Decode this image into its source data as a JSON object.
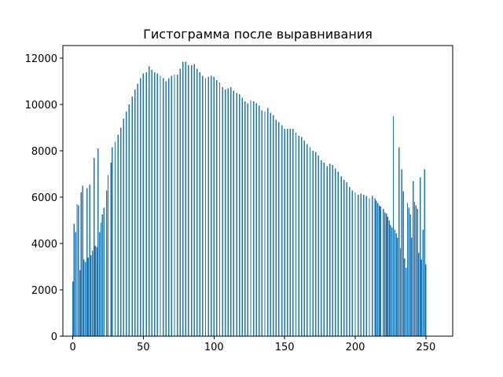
{
  "chart_data": {
    "type": "bar",
    "title": "Гистограмма после выравнивания",
    "xlabel": "",
    "ylabel": "",
    "xlim": [
      -7,
      269
    ],
    "ylim": [
      0,
      12550
    ],
    "xticks": [
      0,
      50,
      100,
      150,
      200,
      250
    ],
    "yticks": [
      0,
      2000,
      4000,
      6000,
      8000,
      10000,
      12000
    ],
    "bar_color": "#1f77b4",
    "grid": false,
    "legend": "none",
    "bins": [
      {
        "x": 0,
        "value": 2350
      },
      {
        "x": 1,
        "value": 4850
      },
      {
        "x": 2,
        "value": 4500
      },
      {
        "x": 3,
        "value": 5700
      },
      {
        "x": 4,
        "value": 5650
      },
      {
        "x": 5,
        "value": 2850
      },
      {
        "x": 6,
        "value": 6200
      },
      {
        "x": 7,
        "value": 6500
      },
      {
        "x": 8,
        "value": 3300
      },
      {
        "x": 9,
        "value": 3200
      },
      {
        "x": 10,
        "value": 6400
      },
      {
        "x": 11,
        "value": 3400
      },
      {
        "x": 12,
        "value": 6550
      },
      {
        "x": 13,
        "value": 3500
      },
      {
        "x": 14,
        "value": 3700
      },
      {
        "x": 15,
        "value": 7700
      },
      {
        "x": 16,
        "value": 3900
      },
      {
        "x": 17,
        "value": 3850
      },
      {
        "x": 18,
        "value": 8100
      },
      {
        "x": 19,
        "value": 4500
      },
      {
        "x": 20,
        "value": 4900
      },
      {
        "x": 21,
        "value": 5250
      },
      {
        "x": 22,
        "value": 5550
      },
      {
        "x": 24,
        "value": 6300
      },
      {
        "x": 25,
        "value": 6950
      },
      {
        "x": 27,
        "value": 7500
      },
      {
        "x": 28,
        "value": 8150
      },
      {
        "x": 30,
        "value": 8400
      },
      {
        "x": 32,
        "value": 8700
      },
      {
        "x": 34,
        "value": 9000
      },
      {
        "x": 36,
        "value": 9400
      },
      {
        "x": 38,
        "value": 9700
      },
      {
        "x": 40,
        "value": 10000
      },
      {
        "x": 42,
        "value": 10350
      },
      {
        "x": 44,
        "value": 10650
      },
      {
        "x": 46,
        "value": 10900
      },
      {
        "x": 48,
        "value": 11150
      },
      {
        "x": 50,
        "value": 11350
      },
      {
        "x": 52,
        "value": 11400
      },
      {
        "x": 54,
        "value": 11650
      },
      {
        "x": 56,
        "value": 11500
      },
      {
        "x": 58,
        "value": 11400
      },
      {
        "x": 60,
        "value": 11350
      },
      {
        "x": 62,
        "value": 11250
      },
      {
        "x": 64,
        "value": 11150
      },
      {
        "x": 66,
        "value": 11000
      },
      {
        "x": 68,
        "value": 11150
      },
      {
        "x": 70,
        "value": 11250
      },
      {
        "x": 72,
        "value": 11300
      },
      {
        "x": 74,
        "value": 11300
      },
      {
        "x": 76,
        "value": 11550
      },
      {
        "x": 78,
        "value": 11850
      },
      {
        "x": 80,
        "value": 11850
      },
      {
        "x": 82,
        "value": 11700
      },
      {
        "x": 84,
        "value": 11700
      },
      {
        "x": 86,
        "value": 11750
      },
      {
        "x": 88,
        "value": 11550
      },
      {
        "x": 90,
        "value": 11400
      },
      {
        "x": 92,
        "value": 11250
      },
      {
        "x": 94,
        "value": 11150
      },
      {
        "x": 96,
        "value": 11200
      },
      {
        "x": 98,
        "value": 11250
      },
      {
        "x": 100,
        "value": 11200
      },
      {
        "x": 102,
        "value": 11050
      },
      {
        "x": 104,
        "value": 10950
      },
      {
        "x": 106,
        "value": 10750
      },
      {
        "x": 108,
        "value": 10650
      },
      {
        "x": 110,
        "value": 10700
      },
      {
        "x": 112,
        "value": 10750
      },
      {
        "x": 114,
        "value": 10600
      },
      {
        "x": 116,
        "value": 10500
      },
      {
        "x": 118,
        "value": 10450
      },
      {
        "x": 120,
        "value": 10300
      },
      {
        "x": 122,
        "value": 10150
      },
      {
        "x": 124,
        "value": 10050
      },
      {
        "x": 126,
        "value": 10200
      },
      {
        "x": 128,
        "value": 10150
      },
      {
        "x": 130,
        "value": 10050
      },
      {
        "x": 132,
        "value": 9950
      },
      {
        "x": 134,
        "value": 9750
      },
      {
        "x": 136,
        "value": 9700
      },
      {
        "x": 138,
        "value": 9850
      },
      {
        "x": 140,
        "value": 9650
      },
      {
        "x": 142,
        "value": 9550
      },
      {
        "x": 144,
        "value": 9350
      },
      {
        "x": 146,
        "value": 9250
      },
      {
        "x": 148,
        "value": 9100
      },
      {
        "x": 150,
        "value": 8950
      },
      {
        "x": 152,
        "value": 8950
      },
      {
        "x": 154,
        "value": 8950
      },
      {
        "x": 156,
        "value": 8950
      },
      {
        "x": 158,
        "value": 8800
      },
      {
        "x": 160,
        "value": 8650
      },
      {
        "x": 162,
        "value": 8600
      },
      {
        "x": 164,
        "value": 8450
      },
      {
        "x": 166,
        "value": 8300
      },
      {
        "x": 168,
        "value": 8150
      },
      {
        "x": 170,
        "value": 8000
      },
      {
        "x": 172,
        "value": 7950
      },
      {
        "x": 174,
        "value": 7800
      },
      {
        "x": 176,
        "value": 7600
      },
      {
        "x": 178,
        "value": 7500
      },
      {
        "x": 180,
        "value": 7350
      },
      {
        "x": 182,
        "value": 7450
      },
      {
        "x": 184,
        "value": 7400
      },
      {
        "x": 186,
        "value": 7250
      },
      {
        "x": 188,
        "value": 7100
      },
      {
        "x": 190,
        "value": 6900
      },
      {
        "x": 192,
        "value": 6750
      },
      {
        "x": 194,
        "value": 6650
      },
      {
        "x": 196,
        "value": 6450
      },
      {
        "x": 198,
        "value": 6300
      },
      {
        "x": 200,
        "value": 6200
      },
      {
        "x": 202,
        "value": 6100
      },
      {
        "x": 204,
        "value": 6150
      },
      {
        "x": 206,
        "value": 6100
      },
      {
        "x": 208,
        "value": 6050
      },
      {
        "x": 210,
        "value": 5950
      },
      {
        "x": 212,
        "value": 6050
      },
      {
        "x": 214,
        "value": 5950
      },
      {
        "x": 215,
        "value": 5850
      },
      {
        "x": 216,
        "value": 5750
      },
      {
        "x": 217,
        "value": 5650
      },
      {
        "x": 218,
        "value": 5600
      },
      {
        "x": 220,
        "value": 5500
      },
      {
        "x": 221,
        "value": 5350
      },
      {
        "x": 222,
        "value": 5300
      },
      {
        "x": 223,
        "value": 5150
      },
      {
        "x": 224,
        "value": 5000
      },
      {
        "x": 225,
        "value": 4800
      },
      {
        "x": 226,
        "value": 4700
      },
      {
        "x": 227,
        "value": 9500
      },
      {
        "x": 228,
        "value": 4600
      },
      {
        "x": 229,
        "value": 4450
      },
      {
        "x": 230,
        "value": 4250
      },
      {
        "x": 231,
        "value": 8150
      },
      {
        "x": 232,
        "value": 3800
      },
      {
        "x": 233,
        "value": 7200
      },
      {
        "x": 234,
        "value": 6250
      },
      {
        "x": 235,
        "value": 3350
      },
      {
        "x": 236,
        "value": 2950
      },
      {
        "x": 237,
        "value": 5750
      },
      {
        "x": 238,
        "value": 5550
      },
      {
        "x": 239,
        "value": 5250
      },
      {
        "x": 240,
        "value": 4250
      },
      {
        "x": 241,
        "value": 6700
      },
      {
        "x": 242,
        "value": 5800
      },
      {
        "x": 243,
        "value": 5650
      },
      {
        "x": 244,
        "value": 5500
      },
      {
        "x": 245,
        "value": 3600
      },
      {
        "x": 246,
        "value": 6850
      },
      {
        "x": 247,
        "value": 3300
      },
      {
        "x": 248,
        "value": 4600
      },
      {
        "x": 249,
        "value": 7200
      },
      {
        "x": 250,
        "value": 3100
      }
    ]
  }
}
